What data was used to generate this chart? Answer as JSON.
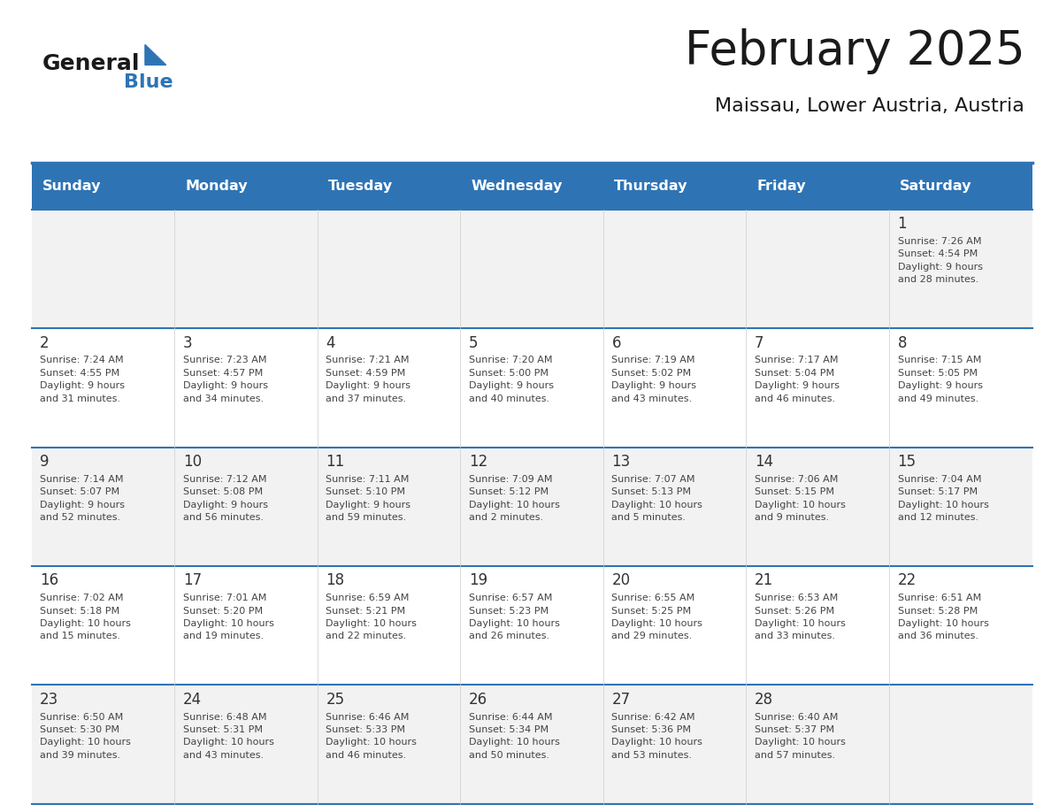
{
  "title": "February 2025",
  "subtitle": "Maissau, Lower Austria, Austria",
  "days_of_week": [
    "Sunday",
    "Monday",
    "Tuesday",
    "Wednesday",
    "Thursday",
    "Friday",
    "Saturday"
  ],
  "header_bg": "#2E74B5",
  "header_text": "#FFFFFF",
  "cell_bg_light": "#FFFFFF",
  "cell_bg_gray": "#F2F2F2",
  "separator_color": "#2E74B5",
  "text_color": "#333333",
  "logo_general_color": "#1A1A1A",
  "logo_blue_color": "#2E74B5",
  "weeks": [
    [
      {
        "day": null,
        "info": null
      },
      {
        "day": null,
        "info": null
      },
      {
        "day": null,
        "info": null
      },
      {
        "day": null,
        "info": null
      },
      {
        "day": null,
        "info": null
      },
      {
        "day": null,
        "info": null
      },
      {
        "day": 1,
        "info": "Sunrise: 7:26 AM\nSunset: 4:54 PM\nDaylight: 9 hours\nand 28 minutes."
      }
    ],
    [
      {
        "day": 2,
        "info": "Sunrise: 7:24 AM\nSunset: 4:55 PM\nDaylight: 9 hours\nand 31 minutes."
      },
      {
        "day": 3,
        "info": "Sunrise: 7:23 AM\nSunset: 4:57 PM\nDaylight: 9 hours\nand 34 minutes."
      },
      {
        "day": 4,
        "info": "Sunrise: 7:21 AM\nSunset: 4:59 PM\nDaylight: 9 hours\nand 37 minutes."
      },
      {
        "day": 5,
        "info": "Sunrise: 7:20 AM\nSunset: 5:00 PM\nDaylight: 9 hours\nand 40 minutes."
      },
      {
        "day": 6,
        "info": "Sunrise: 7:19 AM\nSunset: 5:02 PM\nDaylight: 9 hours\nand 43 minutes."
      },
      {
        "day": 7,
        "info": "Sunrise: 7:17 AM\nSunset: 5:04 PM\nDaylight: 9 hours\nand 46 minutes."
      },
      {
        "day": 8,
        "info": "Sunrise: 7:15 AM\nSunset: 5:05 PM\nDaylight: 9 hours\nand 49 minutes."
      }
    ],
    [
      {
        "day": 9,
        "info": "Sunrise: 7:14 AM\nSunset: 5:07 PM\nDaylight: 9 hours\nand 52 minutes."
      },
      {
        "day": 10,
        "info": "Sunrise: 7:12 AM\nSunset: 5:08 PM\nDaylight: 9 hours\nand 56 minutes."
      },
      {
        "day": 11,
        "info": "Sunrise: 7:11 AM\nSunset: 5:10 PM\nDaylight: 9 hours\nand 59 minutes."
      },
      {
        "day": 12,
        "info": "Sunrise: 7:09 AM\nSunset: 5:12 PM\nDaylight: 10 hours\nand 2 minutes."
      },
      {
        "day": 13,
        "info": "Sunrise: 7:07 AM\nSunset: 5:13 PM\nDaylight: 10 hours\nand 5 minutes."
      },
      {
        "day": 14,
        "info": "Sunrise: 7:06 AM\nSunset: 5:15 PM\nDaylight: 10 hours\nand 9 minutes."
      },
      {
        "day": 15,
        "info": "Sunrise: 7:04 AM\nSunset: 5:17 PM\nDaylight: 10 hours\nand 12 minutes."
      }
    ],
    [
      {
        "day": 16,
        "info": "Sunrise: 7:02 AM\nSunset: 5:18 PM\nDaylight: 10 hours\nand 15 minutes."
      },
      {
        "day": 17,
        "info": "Sunrise: 7:01 AM\nSunset: 5:20 PM\nDaylight: 10 hours\nand 19 minutes."
      },
      {
        "day": 18,
        "info": "Sunrise: 6:59 AM\nSunset: 5:21 PM\nDaylight: 10 hours\nand 22 minutes."
      },
      {
        "day": 19,
        "info": "Sunrise: 6:57 AM\nSunset: 5:23 PM\nDaylight: 10 hours\nand 26 minutes."
      },
      {
        "day": 20,
        "info": "Sunrise: 6:55 AM\nSunset: 5:25 PM\nDaylight: 10 hours\nand 29 minutes."
      },
      {
        "day": 21,
        "info": "Sunrise: 6:53 AM\nSunset: 5:26 PM\nDaylight: 10 hours\nand 33 minutes."
      },
      {
        "day": 22,
        "info": "Sunrise: 6:51 AM\nSunset: 5:28 PM\nDaylight: 10 hours\nand 36 minutes."
      }
    ],
    [
      {
        "day": 23,
        "info": "Sunrise: 6:50 AM\nSunset: 5:30 PM\nDaylight: 10 hours\nand 39 minutes."
      },
      {
        "day": 24,
        "info": "Sunrise: 6:48 AM\nSunset: 5:31 PM\nDaylight: 10 hours\nand 43 minutes."
      },
      {
        "day": 25,
        "info": "Sunrise: 6:46 AM\nSunset: 5:33 PM\nDaylight: 10 hours\nand 46 minutes."
      },
      {
        "day": 26,
        "info": "Sunrise: 6:44 AM\nSunset: 5:34 PM\nDaylight: 10 hours\nand 50 minutes."
      },
      {
        "day": 27,
        "info": "Sunrise: 6:42 AM\nSunset: 5:36 PM\nDaylight: 10 hours\nand 53 minutes."
      },
      {
        "day": 28,
        "info": "Sunrise: 6:40 AM\nSunset: 5:37 PM\nDaylight: 10 hours\nand 57 minutes."
      },
      {
        "day": null,
        "info": null
      }
    ]
  ]
}
